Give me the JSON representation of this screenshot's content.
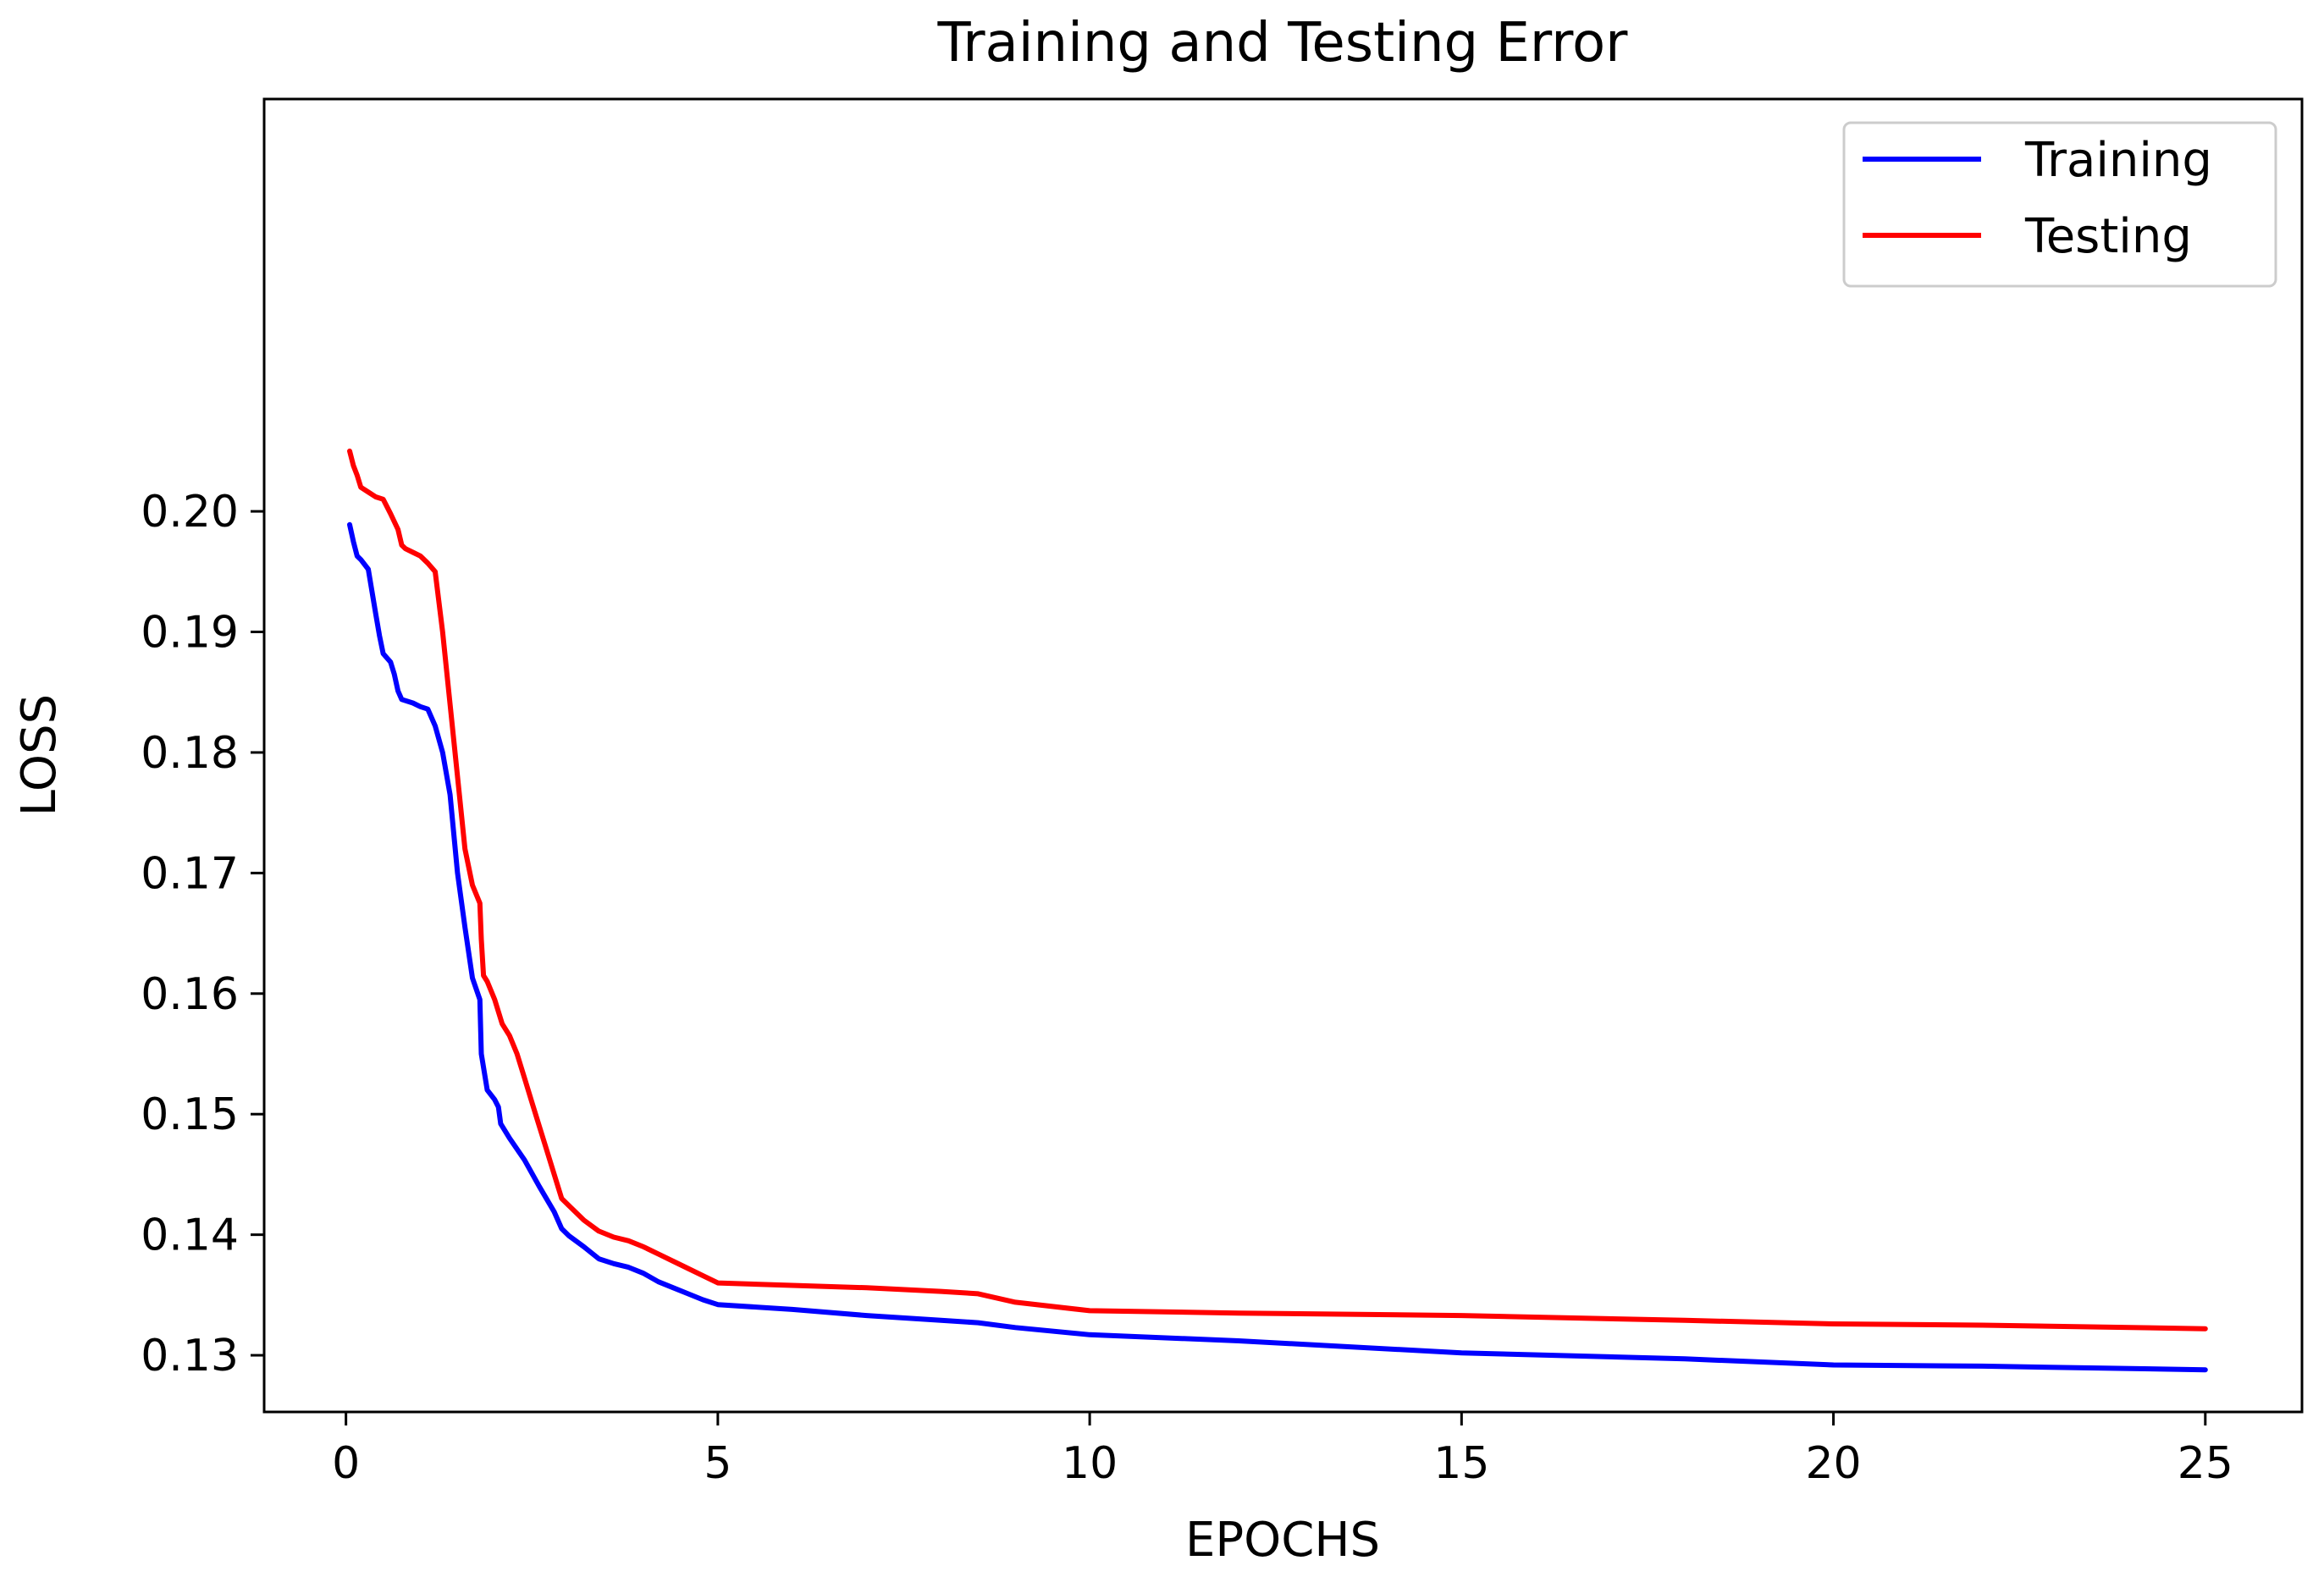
{
  "chart_data": {
    "type": "line",
    "title": "Training and Testing Error",
    "xlabel": "EPOCHS",
    "ylabel": "LOSS",
    "xlim": [
      -1.1,
      26.3
    ],
    "ylim": [
      0.1253,
      0.2342
    ],
    "xticks": [
      0,
      5,
      10,
      15,
      20,
      25
    ],
    "yticks": [
      0.13,
      0.14,
      0.15,
      0.16,
      0.17,
      0.18,
      0.19,
      0.2
    ],
    "xtick_labels": [
      "0",
      "5",
      "10",
      "15",
      "20",
      "25"
    ],
    "ytick_labels": [
      "0.13",
      "0.14",
      "0.15",
      "0.16",
      "0.17",
      "0.18",
      "0.19",
      "0.20"
    ],
    "grid": false,
    "legend_position": "top-right",
    "series": [
      {
        "name": "Training",
        "color": "#0000ff",
        "points": [
          [
            0.05,
            0.1989
          ],
          [
            0.1,
            0.1975
          ],
          [
            0.15,
            0.1963
          ],
          [
            0.2,
            0.196
          ],
          [
            0.3,
            0.1952
          ],
          [
            0.4,
            0.1915
          ],
          [
            0.45,
            0.1897
          ],
          [
            0.5,
            0.1882
          ],
          [
            0.6,
            0.1875
          ],
          [
            0.65,
            0.1865
          ],
          [
            0.7,
            0.1851
          ],
          [
            0.75,
            0.1844
          ],
          [
            0.9,
            0.1841
          ],
          [
            1.0,
            0.1838
          ],
          [
            1.1,
            0.1836
          ],
          [
            1.2,
            0.1822
          ],
          [
            1.3,
            0.18
          ],
          [
            1.4,
            0.1765
          ],
          [
            1.5,
            0.17
          ],
          [
            1.6,
            0.1655
          ],
          [
            1.7,
            0.1613
          ],
          [
            1.8,
            0.1595
          ],
          [
            1.82,
            0.155
          ],
          [
            1.9,
            0.152
          ],
          [
            2.0,
            0.1512
          ],
          [
            2.05,
            0.1506
          ],
          [
            2.08,
            0.1492
          ],
          [
            2.2,
            0.148
          ],
          [
            2.4,
            0.1462
          ],
          [
            2.6,
            0.144
          ],
          [
            2.8,
            0.1419
          ],
          [
            2.9,
            0.1405
          ],
          [
            3.0,
            0.1399
          ],
          [
            3.2,
            0.139
          ],
          [
            3.4,
            0.138
          ],
          [
            3.6,
            0.1376
          ],
          [
            3.8,
            0.1373
          ],
          [
            4.0,
            0.1368
          ],
          [
            4.2,
            0.1361
          ],
          [
            4.4,
            0.1356
          ],
          [
            4.6,
            0.1351
          ],
          [
            4.8,
            0.1346
          ],
          [
            5.0,
            0.1342
          ],
          [
            6.0,
            0.1338
          ],
          [
            7.0,
            0.1333
          ],
          [
            8.0,
            0.1329
          ],
          [
            8.5,
            0.1327
          ],
          [
            9.0,
            0.1323
          ],
          [
            10.0,
            0.1317
          ],
          [
            12.0,
            0.1312
          ],
          [
            15.0,
            0.1302
          ],
          [
            18.0,
            0.1297
          ],
          [
            20.0,
            0.1292
          ],
          [
            22.0,
            0.1291
          ],
          [
            25.0,
            0.1288
          ]
        ]
      },
      {
        "name": "Testing",
        "color": "#ff0000",
        "points": [
          [
            0.05,
            0.205
          ],
          [
            0.1,
            0.2038
          ],
          [
            0.15,
            0.203
          ],
          [
            0.2,
            0.202
          ],
          [
            0.3,
            0.2016
          ],
          [
            0.4,
            0.2012
          ],
          [
            0.5,
            0.201
          ],
          [
            0.6,
            0.1998
          ],
          [
            0.7,
            0.1985
          ],
          [
            0.75,
            0.1972
          ],
          [
            0.8,
            0.1969
          ],
          [
            0.9,
            0.1966
          ],
          [
            1.0,
            0.1963
          ],
          [
            1.1,
            0.1957
          ],
          [
            1.2,
            0.195
          ],
          [
            1.3,
            0.19
          ],
          [
            1.4,
            0.184
          ],
          [
            1.5,
            0.178
          ],
          [
            1.6,
            0.172
          ],
          [
            1.7,
            0.169
          ],
          [
            1.8,
            0.1675
          ],
          [
            1.82,
            0.1645
          ],
          [
            1.85,
            0.1615
          ],
          [
            1.9,
            0.161
          ],
          [
            2.0,
            0.1595
          ],
          [
            2.1,
            0.1575
          ],
          [
            2.2,
            0.1565
          ],
          [
            2.3,
            0.155
          ],
          [
            2.4,
            0.153
          ],
          [
            2.5,
            0.151
          ],
          [
            2.6,
            0.149
          ],
          [
            2.7,
            0.147
          ],
          [
            2.8,
            0.145
          ],
          [
            2.9,
            0.143
          ],
          [
            3.0,
            0.1424
          ],
          [
            3.2,
            0.1412
          ],
          [
            3.4,
            0.1403
          ],
          [
            3.6,
            0.1398
          ],
          [
            3.8,
            0.1395
          ],
          [
            4.0,
            0.139
          ],
          [
            4.2,
            0.1384
          ],
          [
            4.4,
            0.1378
          ],
          [
            4.6,
            0.1372
          ],
          [
            4.8,
            0.1366
          ],
          [
            5.0,
            0.136
          ],
          [
            6.0,
            0.1358
          ],
          [
            7.0,
            0.1356
          ],
          [
            8.0,
            0.1353
          ],
          [
            8.5,
            0.1351
          ],
          [
            9.0,
            0.1344
          ],
          [
            10.0,
            0.1337
          ],
          [
            12.0,
            0.1335
          ],
          [
            15.0,
            0.1333
          ],
          [
            18.0,
            0.1329
          ],
          [
            20.0,
            0.1326
          ],
          [
            22.0,
            0.1325
          ],
          [
            25.0,
            0.1322
          ]
        ]
      }
    ]
  }
}
